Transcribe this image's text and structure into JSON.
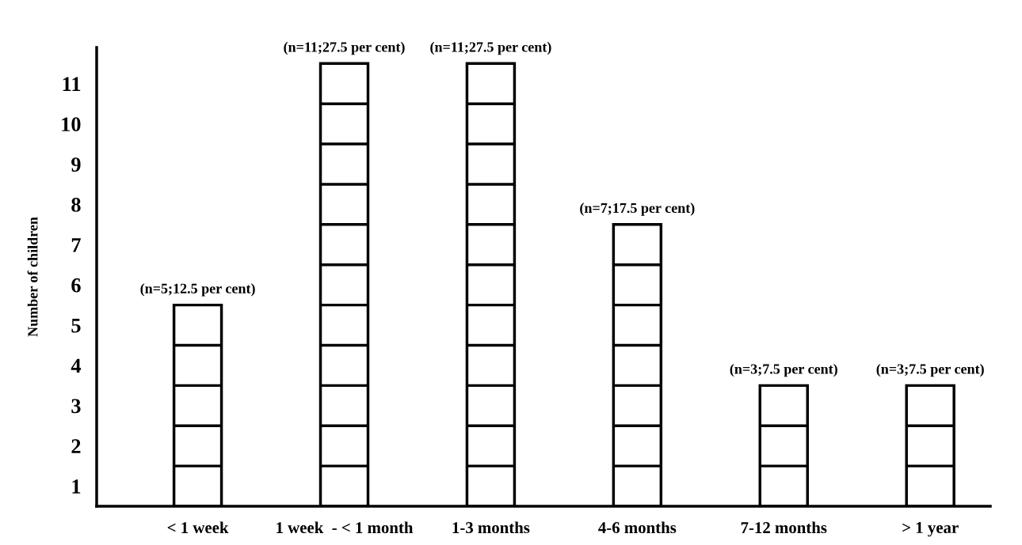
{
  "chart_data": {
    "type": "bar",
    "ylabel": "Number of children",
    "categories": [
      "< 1 week",
      "1 week  - < 1 month",
      "1-3 months",
      "4-6 months",
      "7-12 months",
      "> 1 year"
    ],
    "values": [
      5,
      11,
      11,
      7,
      3,
      3
    ],
    "value_labels": [
      "(n=5;12.5 per cent)",
      "(n=11;27.5 per cent)",
      "(n=11;27.5 per cent)",
      "(n=7;17.5 per cent)",
      "(n=3;7.5 per cent)",
      "(n=3;7.5 per cent)"
    ],
    "color": "#ffffff",
    "ylim": [
      0,
      11.4
    ],
    "yticks": [
      {
        "value": 0.5,
        "label": "1"
      },
      {
        "value": 1.5,
        "label": "2"
      },
      {
        "value": 2.5,
        "label": "3"
      },
      {
        "value": 3.5,
        "label": "4"
      },
      {
        "value": 4.5,
        "label": "5"
      },
      {
        "value": 5.5,
        "label": "6"
      },
      {
        "value": 6.5,
        "label": "7"
      },
      {
        "value": 7.5,
        "label": "8"
      },
      {
        "value": 8.5,
        "label": "9"
      },
      {
        "value": 9.5,
        "label": "10"
      },
      {
        "value": 10.5,
        "label": "11"
      }
    ],
    "grid": false,
    "legend": false
  }
}
